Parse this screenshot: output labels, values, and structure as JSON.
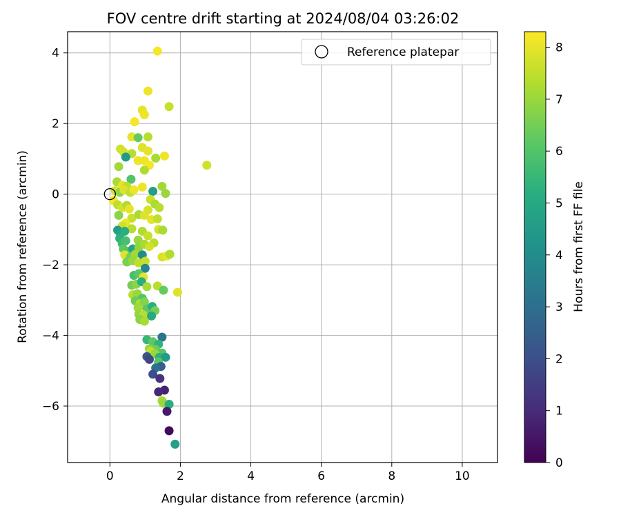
{
  "chart_data": {
    "type": "scatter",
    "title": "FOV centre drift starting at 2024/08/04 03:26:02",
    "xlabel": "Angular distance from reference (arcmin)",
    "ylabel": "Rotation from reference (arcmin)",
    "xlim": [
      -1.2,
      11.0
    ],
    "ylim": [
      -7.6,
      4.6
    ],
    "xticks": [
      0,
      2,
      4,
      6,
      8,
      10
    ],
    "yticks": [
      4,
      2,
      0,
      -2,
      -4,
      -6
    ],
    "xtick_labels": [
      "0",
      "2",
      "4",
      "6",
      "8",
      "10"
    ],
    "ytick_labels": [
      "4",
      "2",
      "0",
      "−2",
      "−4",
      "−6"
    ],
    "grid": true,
    "legend": {
      "placement": "top-right",
      "entries": [
        "Reference platepar"
      ]
    },
    "reference_point": {
      "x": 0.0,
      "y": 0.0
    },
    "colorbar": {
      "label": "Hours from first FF file",
      "min": 0,
      "max": 8.3,
      "ticks": [
        0,
        1,
        2,
        3,
        4,
        5,
        6,
        7,
        8
      ],
      "tick_labels": [
        "0",
        "1",
        "2",
        "3",
        "4",
        "5",
        "6",
        "7",
        "8"
      ],
      "colormap": "viridis"
    },
    "points": [
      {
        "x": 1.35,
        "y": 4.05,
        "c": 8.2
      },
      {
        "x": 1.08,
        "y": 2.92,
        "c": 8.1
      },
      {
        "x": 1.68,
        "y": 2.48,
        "c": 7.6
      },
      {
        "x": 0.92,
        "y": 2.38,
        "c": 8.0
      },
      {
        "x": 0.98,
        "y": 2.25,
        "c": 8.1
      },
      {
        "x": 0.7,
        "y": 2.05,
        "c": 8.2
      },
      {
        "x": 0.62,
        "y": 1.62,
        "c": 8.0
      },
      {
        "x": 0.8,
        "y": 1.6,
        "c": 6.3
      },
      {
        "x": 1.08,
        "y": 1.62,
        "c": 7.4
      },
      {
        "x": 0.3,
        "y": 1.28,
        "c": 7.7
      },
      {
        "x": 0.38,
        "y": 1.2,
        "c": 7.8
      },
      {
        "x": 0.62,
        "y": 1.15,
        "c": 7.4
      },
      {
        "x": 0.92,
        "y": 1.32,
        "c": 7.9
      },
      {
        "x": 1.08,
        "y": 1.22,
        "c": 8.0
      },
      {
        "x": 1.3,
        "y": 1.02,
        "c": 7.2
      },
      {
        "x": 1.55,
        "y": 1.08,
        "c": 8.1
      },
      {
        "x": 0.45,
        "y": 1.05,
        "c": 4.5
      },
      {
        "x": 0.8,
        "y": 0.95,
        "c": 8.1
      },
      {
        "x": 0.98,
        "y": 0.95,
        "c": 8.1
      },
      {
        "x": 2.75,
        "y": 0.82,
        "c": 7.7
      },
      {
        "x": 0.25,
        "y": 0.78,
        "c": 7.1
      },
      {
        "x": 1.12,
        "y": 0.82,
        "c": 8.2
      },
      {
        "x": 0.98,
        "y": 0.68,
        "c": 7.3
      },
      {
        "x": 0.6,
        "y": 0.42,
        "c": 6.0
      },
      {
        "x": 0.2,
        "y": 0.35,
        "c": 7.2
      },
      {
        "x": 0.35,
        "y": 0.25,
        "c": 8.0
      },
      {
        "x": 0.48,
        "y": 0.22,
        "c": 7.4
      },
      {
        "x": 0.92,
        "y": 0.2,
        "c": 8.1
      },
      {
        "x": 1.22,
        "y": 0.08,
        "c": 4.6
      },
      {
        "x": 1.48,
        "y": 0.22,
        "c": 7.1
      },
      {
        "x": 1.58,
        "y": 0.02,
        "c": 7.0
      },
      {
        "x": 0.15,
        "y": 0.1,
        "c": 7.8
      },
      {
        "x": 0.28,
        "y": 0.05,
        "c": 6.8
      },
      {
        "x": 0.4,
        "y": 0.12,
        "c": 7.9
      },
      {
        "x": 0.58,
        "y": 0.05,
        "c": 7.5
      },
      {
        "x": 0.68,
        "y": 0.12,
        "c": 8.1
      },
      {
        "x": 0.1,
        "y": -0.18,
        "c": 8.2
      },
      {
        "x": 0.22,
        "y": -0.3,
        "c": 7.5
      },
      {
        "x": 0.35,
        "y": -0.38,
        "c": 7.8
      },
      {
        "x": 0.48,
        "y": -0.32,
        "c": 7.3
      },
      {
        "x": 0.55,
        "y": -0.42,
        "c": 8.0
      },
      {
        "x": 1.15,
        "y": -0.15,
        "c": 7.6
      },
      {
        "x": 1.28,
        "y": -0.28,
        "c": 7.2
      },
      {
        "x": 1.4,
        "y": -0.38,
        "c": 7.4
      },
      {
        "x": 1.08,
        "y": -0.45,
        "c": 7.8
      },
      {
        "x": 0.25,
        "y": -0.6,
        "c": 6.8
      },
      {
        "x": 0.62,
        "y": -0.68,
        "c": 7.6
      },
      {
        "x": 0.82,
        "y": -0.58,
        "c": 7.2
      },
      {
        "x": 0.98,
        "y": -0.6,
        "c": 7.9
      },
      {
        "x": 1.18,
        "y": -0.72,
        "c": 8.0
      },
      {
        "x": 1.35,
        "y": -0.7,
        "c": 7.5
      },
      {
        "x": 0.45,
        "y": -0.82,
        "c": 8.1
      },
      {
        "x": 0.35,
        "y": -0.9,
        "c": 7.7
      },
      {
        "x": 0.62,
        "y": -0.98,
        "c": 7.4
      },
      {
        "x": 0.22,
        "y": -1.02,
        "c": 4.5
      },
      {
        "x": 0.3,
        "y": -1.12,
        "c": 4.8
      },
      {
        "x": 0.42,
        "y": -1.05,
        "c": 5.2
      },
      {
        "x": 0.92,
        "y": -1.05,
        "c": 7.3
      },
      {
        "x": 1.08,
        "y": -1.18,
        "c": 7.6
      },
      {
        "x": 1.38,
        "y": -1.0,
        "c": 7.8
      },
      {
        "x": 1.5,
        "y": -1.02,
        "c": 7.2
      },
      {
        "x": 0.28,
        "y": -1.25,
        "c": 5.3
      },
      {
        "x": 0.35,
        "y": -1.4,
        "c": 5.6
      },
      {
        "x": 0.45,
        "y": -1.32,
        "c": 5.8
      },
      {
        "x": 0.8,
        "y": -1.3,
        "c": 7.0
      },
      {
        "x": 1.25,
        "y": -1.38,
        "c": 7.4
      },
      {
        "x": 0.38,
        "y": -1.55,
        "c": 6.2
      },
      {
        "x": 0.52,
        "y": -1.62,
        "c": 6.0
      },
      {
        "x": 0.65,
        "y": -1.55,
        "c": 4.8
      },
      {
        "x": 0.82,
        "y": -1.5,
        "c": 6.9
      },
      {
        "x": 0.98,
        "y": -1.42,
        "c": 7.2
      },
      {
        "x": 1.12,
        "y": -1.48,
        "c": 7.7
      },
      {
        "x": 0.42,
        "y": -1.72,
        "c": 7.9
      },
      {
        "x": 0.58,
        "y": -1.78,
        "c": 6.5
      },
      {
        "x": 0.72,
        "y": -1.7,
        "c": 7.1
      },
      {
        "x": 0.92,
        "y": -1.72,
        "c": 4.0
      },
      {
        "x": 1.48,
        "y": -1.78,
        "c": 7.8
      },
      {
        "x": 1.62,
        "y": -1.75,
        "c": 8.0
      },
      {
        "x": 1.7,
        "y": -1.7,
        "c": 7.3
      },
      {
        "x": 0.48,
        "y": -1.92,
        "c": 6.6
      },
      {
        "x": 0.65,
        "y": -1.88,
        "c": 7.0
      },
      {
        "x": 0.82,
        "y": -1.95,
        "c": 7.5
      },
      {
        "x": 1.0,
        "y": -1.9,
        "c": 7.6
      },
      {
        "x": 1.0,
        "y": -2.1,
        "c": 3.8
      },
      {
        "x": 0.68,
        "y": -2.3,
        "c": 5.8
      },
      {
        "x": 0.82,
        "y": -2.25,
        "c": 6.2
      },
      {
        "x": 0.95,
        "y": -2.35,
        "c": 8.0
      },
      {
        "x": 0.62,
        "y": -2.58,
        "c": 6.5
      },
      {
        "x": 0.75,
        "y": -2.55,
        "c": 6.8
      },
      {
        "x": 0.9,
        "y": -2.48,
        "c": 5.2
      },
      {
        "x": 1.05,
        "y": -2.62,
        "c": 7.2
      },
      {
        "x": 1.35,
        "y": -2.6,
        "c": 7.4
      },
      {
        "x": 1.52,
        "y": -2.72,
        "c": 6.3
      },
      {
        "x": 1.92,
        "y": -2.78,
        "c": 7.9
      },
      {
        "x": 0.65,
        "y": -2.85,
        "c": 7.4
      },
      {
        "x": 0.78,
        "y": -2.82,
        "c": 7.0
      },
      {
        "x": 0.92,
        "y": -2.95,
        "c": 6.0
      },
      {
        "x": 0.72,
        "y": -3.02,
        "c": 6.4
      },
      {
        "x": 0.85,
        "y": -3.1,
        "c": 7.3
      },
      {
        "x": 0.98,
        "y": -3.05,
        "c": 6.7
      },
      {
        "x": 0.8,
        "y": -3.22,
        "c": 7.1
      },
      {
        "x": 1.05,
        "y": -3.25,
        "c": 6.2
      },
      {
        "x": 1.2,
        "y": -3.18,
        "c": 5.2
      },
      {
        "x": 1.28,
        "y": -3.3,
        "c": 6.5
      },
      {
        "x": 0.82,
        "y": -3.4,
        "c": 6.9
      },
      {
        "x": 0.95,
        "y": -3.42,
        "c": 7.4
      },
      {
        "x": 1.18,
        "y": -3.45,
        "c": 5.0
      },
      {
        "x": 0.85,
        "y": -3.55,
        "c": 6.8
      },
      {
        "x": 0.98,
        "y": -3.6,
        "c": 7.2
      },
      {
        "x": 1.48,
        "y": -4.05,
        "c": 3.2
      },
      {
        "x": 1.05,
        "y": -4.12,
        "c": 5.5
      },
      {
        "x": 1.22,
        "y": -4.18,
        "c": 6.2
      },
      {
        "x": 1.38,
        "y": -4.25,
        "c": 5.4
      },
      {
        "x": 1.12,
        "y": -4.38,
        "c": 6.8
      },
      {
        "x": 1.3,
        "y": -4.4,
        "c": 6.4
      },
      {
        "x": 1.48,
        "y": -4.5,
        "c": 6.0
      },
      {
        "x": 1.15,
        "y": -4.45,
        "c": 7.5
      },
      {
        "x": 1.28,
        "y": -4.52,
        "c": 7.0
      },
      {
        "x": 1.05,
        "y": -4.6,
        "c": 2.2
      },
      {
        "x": 1.4,
        "y": -4.62,
        "c": 5.3
      },
      {
        "x": 1.58,
        "y": -4.62,
        "c": 4.5
      },
      {
        "x": 1.12,
        "y": -4.68,
        "c": 1.8
      },
      {
        "x": 1.38,
        "y": -4.75,
        "c": 6.1
      },
      {
        "x": 1.45,
        "y": -4.88,
        "c": 2.5
      },
      {
        "x": 1.3,
        "y": -4.92,
        "c": 3.1
      },
      {
        "x": 1.22,
        "y": -5.1,
        "c": 2.0
      },
      {
        "x": 1.42,
        "y": -5.22,
        "c": 1.2
      },
      {
        "x": 1.55,
        "y": -5.55,
        "c": 0.8
      },
      {
        "x": 1.38,
        "y": -5.6,
        "c": 0.9
      },
      {
        "x": 1.48,
        "y": -5.85,
        "c": 7.2
      },
      {
        "x": 1.52,
        "y": -5.92,
        "c": 7.0
      },
      {
        "x": 1.68,
        "y": -5.95,
        "c": 5.2
      },
      {
        "x": 1.62,
        "y": -6.15,
        "c": 0.6
      },
      {
        "x": 1.68,
        "y": -6.7,
        "c": 0.2
      },
      {
        "x": 1.85,
        "y": -7.08,
        "c": 4.7
      }
    ]
  }
}
